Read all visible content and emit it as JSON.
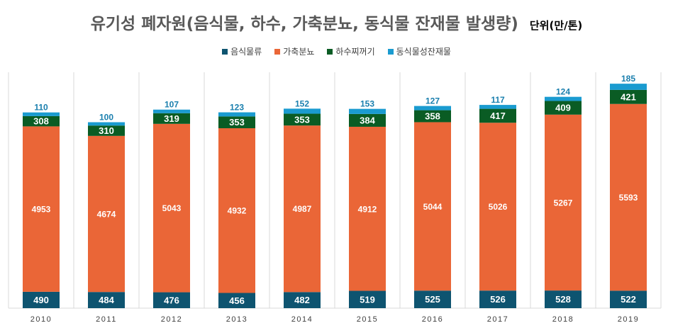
{
  "chart_data": {
    "type": "bar",
    "stacked": true,
    "title": "유기성 폐자원(음식물, 하수, 가축분뇨, 동식물 잔재물 발생량)",
    "unit_label": "단위(만/톤)",
    "legend_position": "top",
    "categories": [
      "2010",
      "2011",
      "2012",
      "2013",
      "2014",
      "2015",
      "2016",
      "2017",
      "2018",
      "2019"
    ],
    "series": [
      {
        "name": "음식물류",
        "color": "#0E5470",
        "values": [
          490,
          484,
          476,
          456,
          482,
          519,
          525,
          526,
          528,
          522
        ]
      },
      {
        "name": "가축분뇨",
        "color": "#EA6637",
        "values": [
          4953,
          4674,
          5043,
          4932,
          4987,
          4912,
          5044,
          5026,
          5267,
          5593
        ]
      },
      {
        "name": "하수찌꺼기",
        "color": "#0A5C24",
        "values": [
          308,
          310,
          319,
          353,
          353,
          384,
          358,
          417,
          409,
          421
        ]
      },
      {
        "name": "동식물성잔재물",
        "color": "#1A9BD0",
        "values": [
          110,
          100,
          107,
          123,
          152,
          153,
          127,
          117,
          124,
          185
        ]
      }
    ],
    "ylim": [
      0,
      7000
    ],
    "grid": "vertical category separators"
  }
}
